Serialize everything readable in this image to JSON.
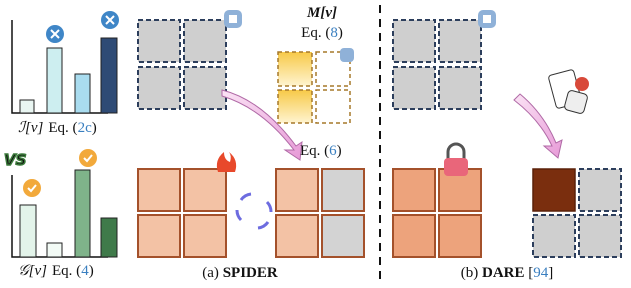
{
  "left_panel": {
    "importance": {
      "symbol": "ℐ[v]",
      "eq_prefix": "Eq. (",
      "ref": "2c",
      "eq_suffix": ")"
    },
    "versus": "VS",
    "gradient": {
      "symbol": "𝒢[v]",
      "eq_prefix": "Eq. (",
      "ref": "4",
      "eq_suffix": ")"
    }
  },
  "spider": {
    "mask": {
      "symbol": "M[v]",
      "eq_prefix": "Eq. (",
      "ref": "8",
      "eq_suffix": ")"
    },
    "update": {
      "eq_prefix": "Eq. (",
      "ref": "6",
      "eq_suffix": ")"
    },
    "caption": {
      "prefix": "(a) ",
      "name": "SPIDER"
    }
  },
  "dare": {
    "caption": {
      "prefix": "(b) ",
      "name": "DARE",
      "cite_open": " [",
      "cite": "94",
      "cite_close": "]"
    }
  }
}
